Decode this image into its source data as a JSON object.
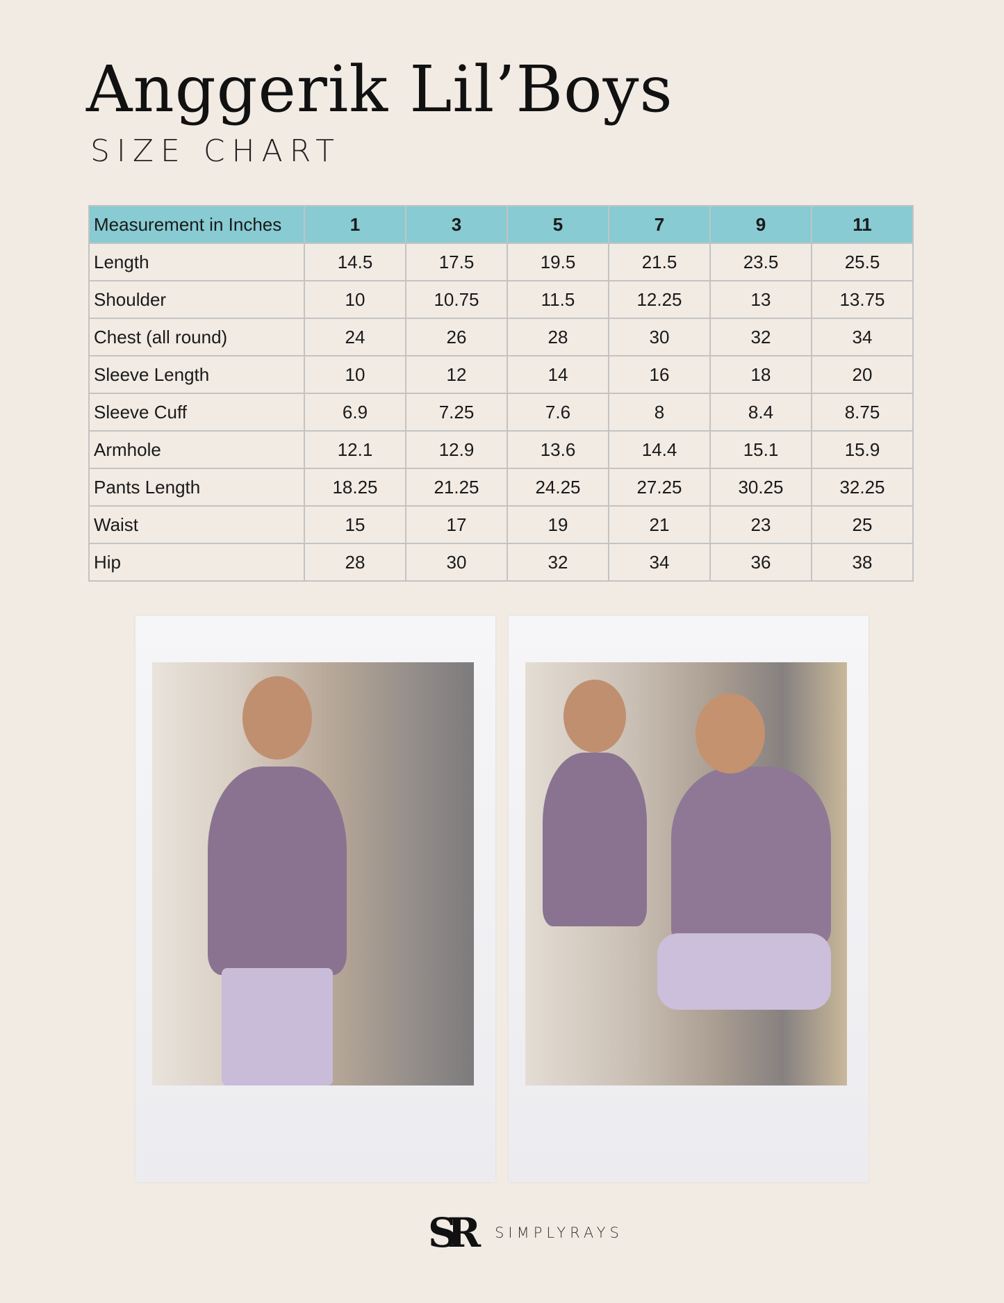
{
  "header": {
    "title": "Anggerik Lil’Boys",
    "subtitle": "SIZE CHART"
  },
  "table": {
    "columns": [
      "Measurement in Inches",
      "1",
      "3",
      "5",
      "7",
      "9",
      "11"
    ],
    "rows": [
      {
        "label": "Length",
        "values": [
          "14.5",
          "17.5",
          "19.5",
          "21.5",
          "23.5",
          "25.5"
        ]
      },
      {
        "label": "Shoulder",
        "values": [
          "10",
          "10.75",
          "11.5",
          "12.25",
          "13",
          "13.75"
        ]
      },
      {
        "label": "Chest (all round)",
        "values": [
          "24",
          "26",
          "28",
          "30",
          "32",
          "34"
        ]
      },
      {
        "label": "Sleeve Length",
        "values": [
          "10",
          "12",
          "14",
          "16",
          "18",
          "20"
        ]
      },
      {
        "label": "Sleeve Cuff",
        "values": [
          "6.9",
          "7.25",
          "7.6",
          "8",
          "8.4",
          "8.75"
        ]
      },
      {
        "label": "Armhole",
        "values": [
          "12.1",
          "12.9",
          "13.6",
          "14.4",
          "15.1",
          "15.9"
        ]
      },
      {
        "label": "Pants Length",
        "values": [
          "18.25",
          "21.25",
          "24.25",
          "27.25",
          "30.25",
          "32.25"
        ]
      },
      {
        "label": "Waist",
        "values": [
          "15",
          "17",
          "19",
          "21",
          "23",
          "25"
        ]
      },
      {
        "label": "Hip",
        "values": [
          "28",
          "30",
          "32",
          "34",
          "36",
          "38"
        ]
      }
    ]
  },
  "colors": {
    "background": "#f1ebe4",
    "header_fill": "#88cbd2",
    "grid": "#c3c3c3"
  },
  "logo": {
    "mark": "SR",
    "text": "SIMPLYRAYS"
  }
}
